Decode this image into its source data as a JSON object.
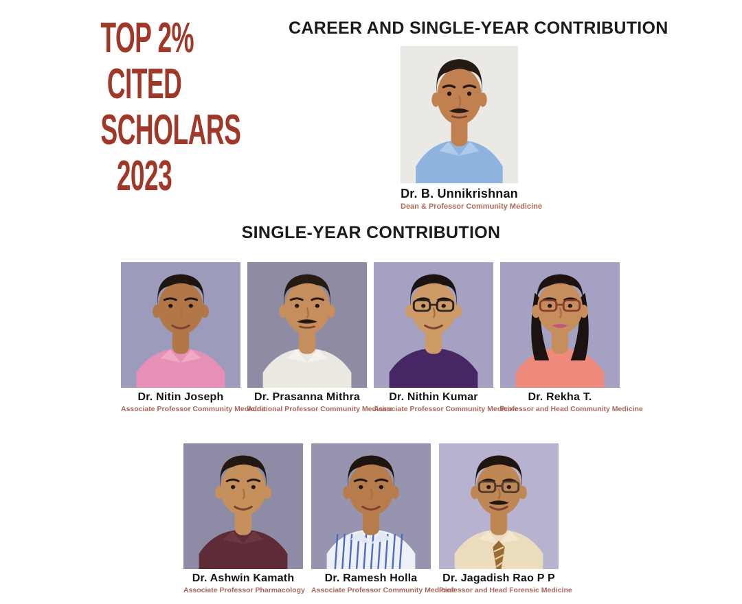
{
  "poster": {
    "title_lines": [
      "TOP 2%",
      "CITED",
      "SCHOLARS",
      "2023"
    ],
    "title_color": "#A0382A",
    "career_heading": "CAREER AND SINGLE-YEAR CONTRIBUTION",
    "single_year_heading": "SINGLE-YEAR CONTRIBUTION",
    "heading_color": "#1B1B1B",
    "name_color": "#141414",
    "role_color": "#AC685A"
  },
  "career_person": {
    "name": "Dr. B. Unnikrishnan",
    "role": "Dean & Professor Community Medicine",
    "avatar": {
      "bg": "#EAE9E6",
      "skin": "#C08050",
      "hair": "#261B14",
      "shirt": "#8FB3DF",
      "collar": "#AECBEA",
      "mustache": true,
      "smile": false
    }
  },
  "single_year_row1": [
    {
      "name": "Dr. Nitin Joseph",
      "role": "Associate Professor Community Medicine",
      "avatar": {
        "bg": "#9D9BBB",
        "skin": "#B27747",
        "hair": "#1E150E",
        "shirt": "#E690B5",
        "collar": "#EFA9C6",
        "smile": true
      }
    },
    {
      "name": "Dr. Prasanna Mithra",
      "role": "Additional Professor Community Medicine",
      "avatar": {
        "bg": "#8E8CA4",
        "skin": "#C58E5C",
        "hair": "#251B12",
        "shirt": "#EAE8E1",
        "collar": "#F4F2EC",
        "mustache": true,
        "smile": false
      }
    },
    {
      "name": "Dr. Nithin Kumar",
      "role": "Associate Professor Community Medicine",
      "avatar": {
        "bg": "#A4A1C3",
        "skin": "#CE9A66",
        "hair": "#1A1310",
        "shirt": "#462763",
        "glasses": "#2B2226",
        "smile": true
      }
    },
    {
      "name": "Dr. Rekha T.",
      "role": "Professor and Head Community Medicine",
      "avatar": {
        "bg": "#A4A1C3",
        "skin": "#C68E5C",
        "hair": "#1C1310",
        "shirt": "#EF8B7D",
        "glasses": "#8A3C31",
        "female": true,
        "smile": true,
        "lips": "#C2547E"
      }
    }
  ],
  "single_year_row2": [
    {
      "name": "Dr. Ashwin Kamath",
      "role": "Associate Professor Pharmacology",
      "avatar": {
        "bg": "#8D8BA5",
        "skin": "#C6905C",
        "hair": "#221810",
        "shirt": "#5E2C37",
        "collar": "#6E3641",
        "smile": true
      }
    },
    {
      "name": "Dr. Ramesh Holla",
      "role": "Associate Professor Community Medicine",
      "avatar": {
        "bg": "#9694AE",
        "skin": "#B67C4B",
        "hair": "#1D140D",
        "shirt": "#EDF1F7",
        "stripes": "#4A6CC2",
        "collar": "#E3E9F4",
        "smile": true
      }
    },
    {
      "name": "Dr. Jagadish Rao P P",
      "role": "Professor and Head Forensic Medicine",
      "avatar": {
        "bg": "#B6B2D0",
        "skin": "#BF8754",
        "hair": "#20150E",
        "shirt": "#EBDCBE",
        "collar": "#F2E7CE",
        "tie": "#9A6A33",
        "tieStripe": "#E8D3A8",
        "glasses": "#4A3A30",
        "mustache": true,
        "smile": true
      }
    }
  ]
}
